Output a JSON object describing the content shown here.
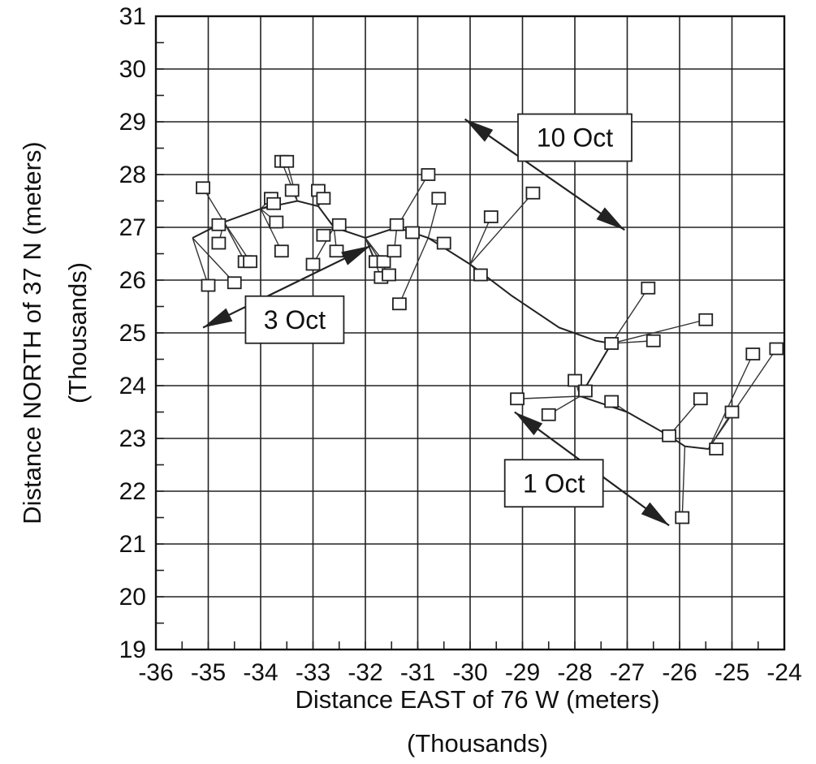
{
  "chart_data": {
    "type": "scatter",
    "xlabel": "Distance EAST of 76 W (meters)",
    "xlabel_sub": "(Thousands)",
    "ylabel": "Distance NORTH of 37 N (meters)",
    "ylabel_sub": "(Thousands)",
    "xlim": [
      -36,
      -24
    ],
    "ylim": [
      19,
      31
    ],
    "x_ticks": [
      "-36",
      "-35",
      "-34",
      "-33",
      "-32",
      "-31",
      "-30",
      "-29",
      "-28",
      "-27",
      "-26",
      "-25",
      "-24"
    ],
    "y_ticks": [
      "19",
      "20",
      "21",
      "22",
      "23",
      "24",
      "25",
      "26",
      "27",
      "28",
      "29",
      "30",
      "31"
    ],
    "grid": true,
    "track": [
      {
        "x": -35.3,
        "y": 26.8
      },
      {
        "x": -34.7,
        "y": 27.1
      },
      {
        "x": -34.0,
        "y": 27.35
      },
      {
        "x": -33.3,
        "y": 27.5
      },
      {
        "x": -32.9,
        "y": 27.4
      },
      {
        "x": -32.6,
        "y": 27.0
      },
      {
        "x": -32.0,
        "y": 26.8
      },
      {
        "x": -31.4,
        "y": 27.0
      },
      {
        "x": -30.8,
        "y": 26.8
      },
      {
        "x": -30.0,
        "y": 26.3
      },
      {
        "x": -29.2,
        "y": 25.7
      },
      {
        "x": -28.3,
        "y": 25.1
      },
      {
        "x": -27.6,
        "y": 24.85
      },
      {
        "x": -27.3,
        "y": 24.8
      },
      {
        "x": -27.9,
        "y": 23.8
      },
      {
        "x": -27.0,
        "y": 23.5
      },
      {
        "x": -26.2,
        "y": 23.05
      },
      {
        "x": -25.9,
        "y": 22.85
      },
      {
        "x": -25.45,
        "y": 22.8
      }
    ],
    "observations": [
      {
        "x": -35.1,
        "y": 27.75
      },
      {
        "x": -34.8,
        "y": 27.05
      },
      {
        "x": -34.8,
        "y": 26.7
      },
      {
        "x": -35.0,
        "y": 25.9
      },
      {
        "x": -34.5,
        "y": 25.95
      },
      {
        "x": -34.3,
        "y": 26.35
      },
      {
        "x": -34.2,
        "y": 26.35
      },
      {
        "x": -33.8,
        "y": 27.55
      },
      {
        "x": -33.75,
        "y": 27.45
      },
      {
        "x": -33.7,
        "y": 27.1
      },
      {
        "x": -33.6,
        "y": 26.55
      },
      {
        "x": -33.6,
        "y": 28.25
      },
      {
        "x": -33.5,
        "y": 28.25
      },
      {
        "x": -33.4,
        "y": 27.7
      },
      {
        "x": -33.0,
        "y": 26.3
      },
      {
        "x": -32.9,
        "y": 27.7
      },
      {
        "x": -32.8,
        "y": 27.55
      },
      {
        "x": -32.8,
        "y": 26.85
      },
      {
        "x": -32.55,
        "y": 26.55
      },
      {
        "x": -32.5,
        "y": 27.05
      },
      {
        "x": -31.8,
        "y": 26.35
      },
      {
        "x": -31.7,
        "y": 26.05
      },
      {
        "x": -31.65,
        "y": 26.35
      },
      {
        "x": -31.55,
        "y": 26.1
      },
      {
        "x": -31.45,
        "y": 26.55
      },
      {
        "x": -31.4,
        "y": 27.05
      },
      {
        "x": -31.35,
        "y": 25.55
      },
      {
        "x": -31.1,
        "y": 26.9
      },
      {
        "x": -30.8,
        "y": 28.0
      },
      {
        "x": -30.6,
        "y": 27.55
      },
      {
        "x": -30.5,
        "y": 26.7
      },
      {
        "x": -29.8,
        "y": 26.1
      },
      {
        "x": -29.6,
        "y": 27.2
      },
      {
        "x": -29.1,
        "y": 23.75
      },
      {
        "x": -28.8,
        "y": 27.65
      },
      {
        "x": -28.5,
        "y": 23.45
      },
      {
        "x": -28.0,
        "y": 24.1
      },
      {
        "x": -27.8,
        "y": 23.9
      },
      {
        "x": -27.3,
        "y": 24.8
      },
      {
        "x": -27.3,
        "y": 23.7
      },
      {
        "x": -26.6,
        "y": 25.85
      },
      {
        "x": -26.5,
        "y": 24.85
      },
      {
        "x": -26.2,
        "y": 23.05
      },
      {
        "x": -25.95,
        "y": 21.5
      },
      {
        "x": -25.6,
        "y": 23.75
      },
      {
        "x": -25.5,
        "y": 25.25
      },
      {
        "x": -25.3,
        "y": 22.8
      },
      {
        "x": -25.0,
        "y": 23.5
      },
      {
        "x": -24.6,
        "y": 24.6
      },
      {
        "x": -24.15,
        "y": 24.7
      }
    ],
    "annotations": [
      {
        "text": "10 Oct",
        "x": -28.0,
        "y": 28.7,
        "arrow_from": {
          "x": -30.1,
          "y": 29.05
        },
        "arrow_to": {
          "x": -27.05,
          "y": 26.95
        }
      },
      {
        "text": "3 Oct",
        "x": -33.35,
        "y": 25.25,
        "arrow_from": {
          "x": -35.1,
          "y": 25.1
        },
        "arrow_to": {
          "x": -31.9,
          "y": 26.65
        }
      },
      {
        "text": "1 Oct",
        "x": -28.4,
        "y": 22.15,
        "arrow_from": {
          "x": -29.15,
          "y": 23.5
        },
        "arrow_to": {
          "x": -26.2,
          "y": 21.35
        }
      }
    ]
  }
}
